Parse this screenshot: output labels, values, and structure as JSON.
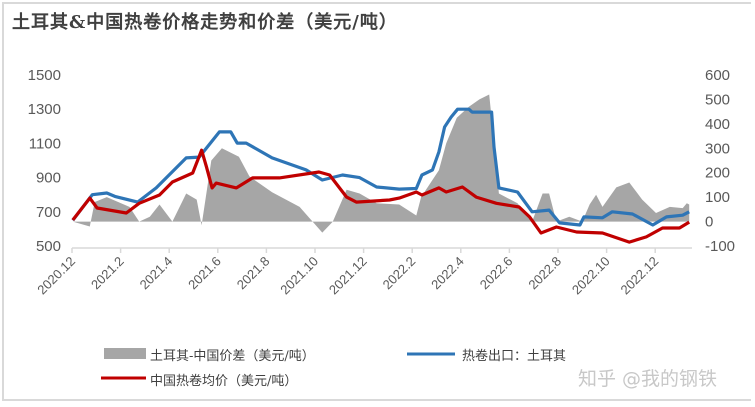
{
  "title": "土耳其&中国热卷价格走势和价差（美元/吨）",
  "watermark": "知乎 @我的钢铁",
  "chart_data": {
    "type": "line",
    "title": "土耳其&中国热卷价格走势和价差（美元/吨）",
    "left_axis": {
      "ylim": [
        500,
        1500
      ],
      "ticks": [
        "500",
        "700",
        "900",
        "1100",
        "1300",
        "1500"
      ]
    },
    "right_axis": {
      "ylim": [
        -100,
        600
      ],
      "ticks": [
        "-100",
        "0",
        "100",
        "200",
        "300",
        "400",
        "500",
        "600"
      ]
    },
    "x_ticks": [
      "2020.12",
      "2021.2",
      "2021.4",
      "2021.6",
      "2021.8",
      "2021.10",
      "2021.12",
      "2022.2",
      "2022.4",
      "2022.6",
      "2022.8",
      "2022.10",
      "2022.12"
    ],
    "grid": false,
    "legend_placement": "bottom",
    "series": [
      {
        "name": "土耳其-中国价差（美元/吨）",
        "type": "area",
        "axis": "right",
        "color": "#a6a6a6",
        "points": [
          [
            "2020-12-02",
            0
          ],
          [
            "2020-12-23",
            -20
          ],
          [
            "2020-12-29",
            80
          ],
          [
            "2021-01-14",
            100
          ],
          [
            "2021-02-12",
            60
          ],
          [
            "2021-02-24",
            0
          ],
          [
            "2021-03-07",
            20
          ],
          [
            "2021-03-19",
            70
          ],
          [
            "2021-04-05",
            0
          ],
          [
            "2021-04-22",
            115
          ],
          [
            "2021-05-05",
            90
          ],
          [
            "2021-05-11",
            -15
          ],
          [
            "2021-05-23",
            250
          ],
          [
            "2021-06-06",
            300
          ],
          [
            "2021-06-27",
            265
          ],
          [
            "2021-07-10",
            185
          ],
          [
            "2021-08-08",
            120
          ],
          [
            "2021-09-12",
            60
          ],
          [
            "2021-09-28",
            0
          ],
          [
            "2021-10-10",
            -45
          ],
          [
            "2021-10-23",
            0
          ],
          [
            "2021-11-10",
            130
          ],
          [
            "2021-11-26",
            115
          ],
          [
            "2021-12-17",
            75
          ],
          [
            "2022-01-15",
            70
          ],
          [
            "2022-02-06",
            25
          ],
          [
            "2022-02-12",
            100
          ],
          [
            "2022-03-04",
            210
          ],
          [
            "2022-03-13",
            320
          ],
          [
            "2022-03-26",
            425
          ],
          [
            "2022-04-11",
            470
          ],
          [
            "2022-04-24",
            500
          ],
          [
            "2022-05-06",
            520
          ],
          [
            "2022-05-10",
            390
          ],
          [
            "2022-05-18",
            115
          ],
          [
            "2022-06-11",
            75
          ],
          [
            "2022-06-29",
            0
          ],
          [
            "2022-07-12",
            115
          ],
          [
            "2022-07-20",
            115
          ],
          [
            "2022-07-29",
            0
          ],
          [
            "2022-08-15",
            20
          ],
          [
            "2022-09-01",
            0
          ],
          [
            "2022-09-10",
            70
          ],
          [
            "2022-09-18",
            110
          ],
          [
            "2022-09-26",
            60
          ],
          [
            "2022-10-13",
            140
          ],
          [
            "2022-10-29",
            160
          ],
          [
            "2022-11-15",
            90
          ],
          [
            "2022-12-02",
            35
          ],
          [
            "2022-12-19",
            60
          ],
          [
            "2023-01-05",
            55
          ],
          [
            "2023-01-10",
            75
          ],
          [
            "2023-01-13",
            70
          ]
        ]
      },
      {
        "name": "热卷出口：土耳其",
        "type": "line",
        "axis": "left",
        "color": "#2e75b6",
        "points": [
          [
            "2020-12-02",
            650
          ],
          [
            "2020-12-26",
            800
          ],
          [
            "2021-01-14",
            810
          ],
          [
            "2021-01-24",
            790
          ],
          [
            "2021-02-22",
            757
          ],
          [
            "2021-03-15",
            840
          ],
          [
            "2021-04-22",
            1015
          ],
          [
            "2021-05-08",
            1020
          ],
          [
            "2021-06-03",
            1167
          ],
          [
            "2021-06-17",
            1167
          ],
          [
            "2021-06-25",
            1102
          ],
          [
            "2021-07-06",
            1102
          ],
          [
            "2021-08-08",
            1015
          ],
          [
            "2021-09-20",
            945
          ],
          [
            "2021-10-10",
            886
          ],
          [
            "2021-11-05",
            915
          ],
          [
            "2021-11-26",
            900
          ],
          [
            "2021-12-17",
            845
          ],
          [
            "2022-01-15",
            833
          ],
          [
            "2022-02-06",
            836
          ],
          [
            "2022-02-13",
            915
          ],
          [
            "2022-02-26",
            945
          ],
          [
            "2022-03-04",
            1050
          ],
          [
            "2022-03-11",
            1196
          ],
          [
            "2022-03-19",
            1254
          ],
          [
            "2022-03-27",
            1300
          ],
          [
            "2022-04-11",
            1300
          ],
          [
            "2022-04-15",
            1283
          ],
          [
            "2022-05-09",
            1283
          ],
          [
            "2022-05-12",
            1079
          ],
          [
            "2022-05-18",
            840
          ],
          [
            "2022-06-11",
            816
          ],
          [
            "2022-06-29",
            700
          ],
          [
            "2022-07-20",
            710
          ],
          [
            "2022-08-03",
            635
          ],
          [
            "2022-08-28",
            623
          ],
          [
            "2022-09-03",
            670
          ],
          [
            "2022-09-26",
            665
          ],
          [
            "2022-10-08",
            700
          ],
          [
            "2022-11-03",
            687
          ],
          [
            "2022-11-28",
            623
          ],
          [
            "2022-12-15",
            670
          ],
          [
            "2023-01-05",
            680
          ],
          [
            "2023-01-13",
            700
          ]
        ]
      },
      {
        "name": "中国热卷均价（美元/吨）",
        "type": "line",
        "axis": "left",
        "color": "#c00000",
        "points": [
          [
            "2020-12-02",
            652
          ],
          [
            "2020-12-23",
            780
          ],
          [
            "2021-01-02",
            722
          ],
          [
            "2021-02-08",
            693
          ],
          [
            "2021-02-24",
            750
          ],
          [
            "2021-03-19",
            798
          ],
          [
            "2021-04-05",
            874
          ],
          [
            "2021-04-30",
            927
          ],
          [
            "2021-05-11",
            1060
          ],
          [
            "2021-05-17",
            962
          ],
          [
            "2021-05-24",
            840
          ],
          [
            "2021-05-29",
            868
          ],
          [
            "2021-06-24",
            840
          ],
          [
            "2021-07-14",
            898
          ],
          [
            "2021-08-17",
            898
          ],
          [
            "2021-10-06",
            933
          ],
          [
            "2021-10-19",
            915
          ],
          [
            "2021-11-10",
            786
          ],
          [
            "2021-11-22",
            757
          ],
          [
            "2022-01-03",
            769
          ],
          [
            "2022-01-15",
            780
          ],
          [
            "2022-02-06",
            816
          ],
          [
            "2022-02-13",
            798
          ],
          [
            "2022-03-04",
            840
          ],
          [
            "2022-03-13",
            816
          ],
          [
            "2022-04-03",
            845
          ],
          [
            "2022-04-20",
            786
          ],
          [
            "2022-05-15",
            750
          ],
          [
            "2022-06-13",
            728
          ],
          [
            "2022-06-26",
            670
          ],
          [
            "2022-07-10",
            576
          ],
          [
            "2022-07-29",
            611
          ],
          [
            "2022-08-24",
            582
          ],
          [
            "2022-09-26",
            576
          ],
          [
            "2022-10-29",
            523
          ],
          [
            "2022-11-20",
            553
          ],
          [
            "2022-12-10",
            605
          ],
          [
            "2023-01-01",
            605
          ],
          [
            "2023-01-13",
            640
          ]
        ]
      }
    ]
  }
}
